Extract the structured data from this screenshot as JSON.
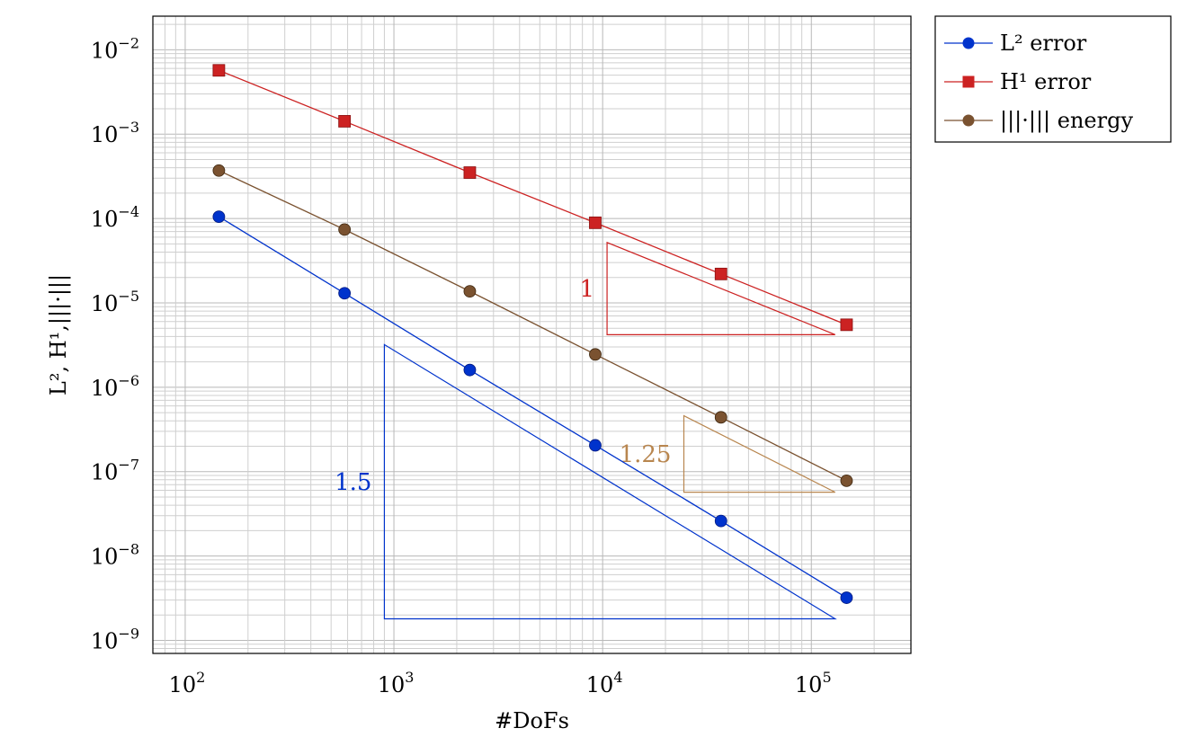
{
  "chart_data": {
    "type": "line",
    "xscale": "log",
    "yscale": "log",
    "xlabel": "#DoFs",
    "ylabel": "L², H¹,|||·|||",
    "xlim": [
      70,
      300000
    ],
    "ylim": [
      7e-10,
      0.025
    ],
    "x_tick_labels": [
      {
        "value": 100,
        "base": "10",
        "exp": "2"
      },
      {
        "value": 1000,
        "base": "10",
        "exp": "3"
      },
      {
        "value": 10000,
        "base": "10",
        "exp": "4"
      },
      {
        "value": 100000,
        "base": "10",
        "exp": "5"
      }
    ],
    "y_tick_labels": [
      {
        "value": 1e-09,
        "base": "10",
        "exp": "−9"
      },
      {
        "value": 1e-08,
        "base": "10",
        "exp": "−8"
      },
      {
        "value": 1e-07,
        "base": "10",
        "exp": "−7"
      },
      {
        "value": 1e-06,
        "base": "10",
        "exp": "−6"
      },
      {
        "value": 1e-05,
        "base": "10",
        "exp": "−5"
      },
      {
        "value": 0.0001,
        "base": "10",
        "exp": "−4"
      },
      {
        "value": 0.001,
        "base": "10",
        "exp": "−3"
      },
      {
        "value": 0.01,
        "base": "10",
        "exp": "−2"
      }
    ],
    "grid": true,
    "legend_position": "outside-top-right",
    "x": [
      145,
      580,
      2310,
      9220,
      36900,
      147500
    ],
    "series": [
      {
        "name": "L² error",
        "color": "#0033cc",
        "marker": "circle",
        "values": [
          0.000105,
          1.3e-05,
          1.6e-06,
          2.05e-07,
          2.6e-08,
          3.2e-09
        ]
      },
      {
        "name": "H¹ error",
        "color": "#cc2222",
        "marker": "square",
        "values": [
          0.0057,
          0.00142,
          0.00035,
          8.9e-05,
          2.2e-05,
          5.5e-06
        ]
      },
      {
        "name": "|||·||| energy",
        "color": "#7a5230",
        "marker": "circle",
        "values": [
          0.00037,
          7.4e-05,
          1.37e-05,
          2.45e-06,
          4.4e-07,
          7.8e-08
        ]
      }
    ],
    "slope_triangles": [
      {
        "label": "1.5",
        "color": "#0033cc",
        "x_left": 900,
        "x_right": 130000,
        "y_low": 1.8e-09,
        "y_high": 3.2e-06
      },
      {
        "label": "1",
        "color": "#cc2222",
        "x_left": 10500,
        "x_right": 130000,
        "y_low": 4.2e-06,
        "y_high": 5.2e-05
      },
      {
        "label": "1.25",
        "color": "#b8864f",
        "x_left": 24500,
        "x_right": 130000,
        "y_low": 5.7e-08,
        "y_high": 4.6e-07
      }
    ]
  }
}
